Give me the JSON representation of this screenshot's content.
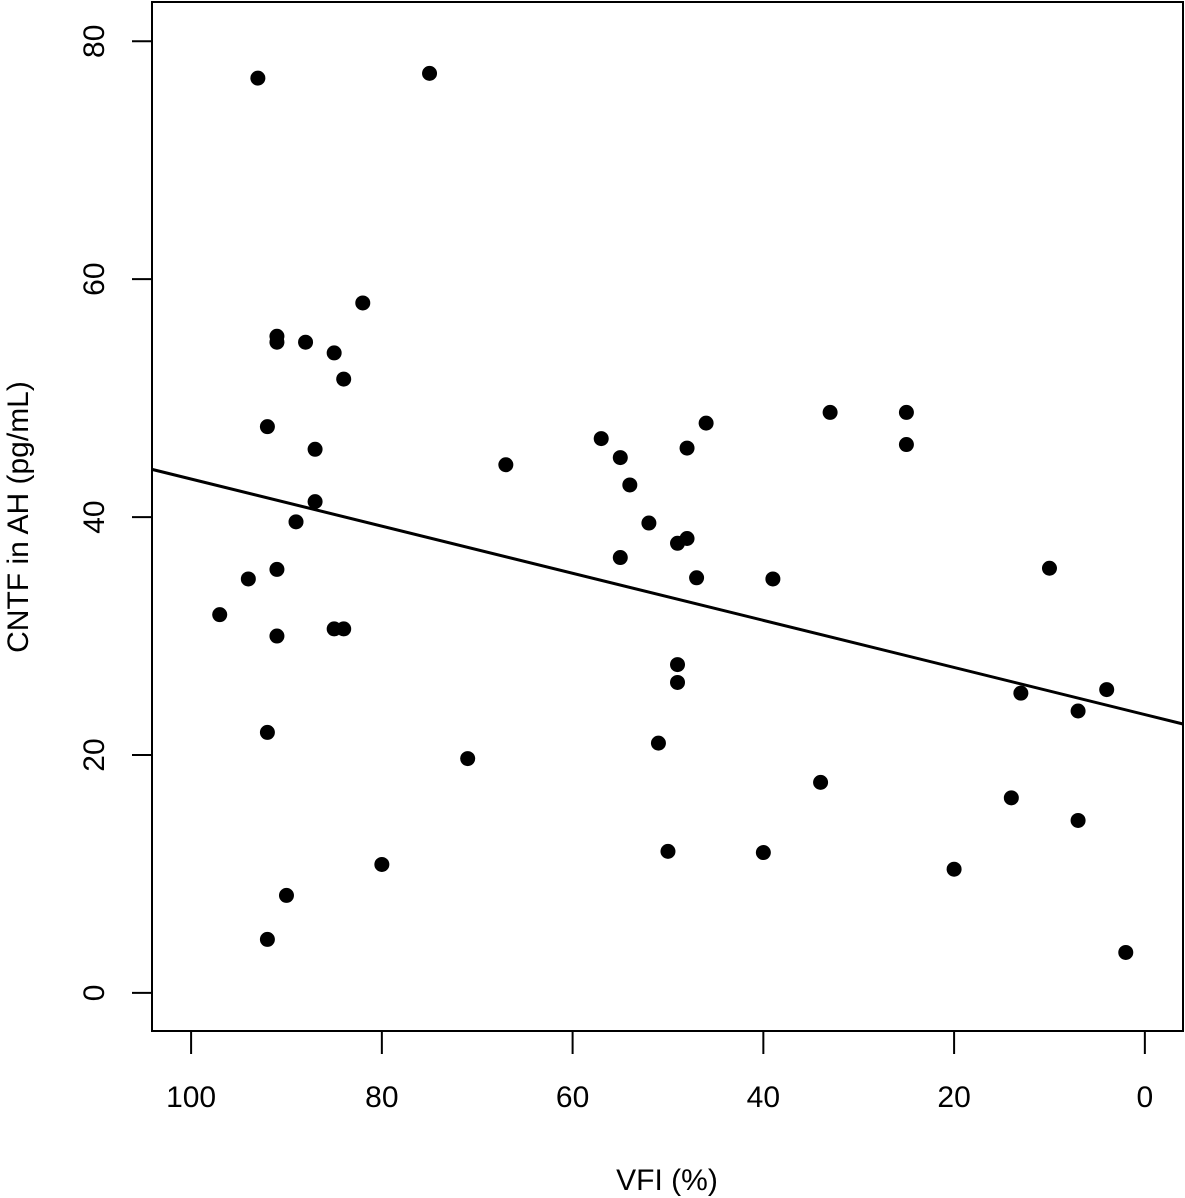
{
  "chart_data": {
    "type": "scatter",
    "title": "",
    "xlabel": "VFI (%)",
    "ylabel": "CNTF in AH (pg/mL)",
    "xlim": [
      104.1,
      -4.0
    ],
    "ylim": [
      -3.2,
      83.3
    ],
    "x_reversed": true,
    "grid": false,
    "x_ticks": [
      100,
      80,
      60,
      40,
      20,
      0
    ],
    "x_tick_labels": [
      "100",
      "80",
      "60",
      "40",
      "20",
      "0"
    ],
    "y_ticks": [
      0,
      20,
      40,
      60,
      80
    ],
    "y_tick_labels": [
      "0",
      "20",
      "40",
      "60",
      "80"
    ],
    "point_color": "#000000",
    "points": [
      {
        "x": 93,
        "y": 76.9
      },
      {
        "x": 75,
        "y": 77.3
      },
      {
        "x": 82,
        "y": 58.0
      },
      {
        "x": 91,
        "y": 55.2
      },
      {
        "x": 91,
        "y": 54.7
      },
      {
        "x": 88,
        "y": 54.7
      },
      {
        "x": 85,
        "y": 53.8
      },
      {
        "x": 84,
        "y": 51.6
      },
      {
        "x": 92,
        "y": 47.6
      },
      {
        "x": 87,
        "y": 45.7
      },
      {
        "x": 87,
        "y": 41.3
      },
      {
        "x": 89,
        "y": 39.6
      },
      {
        "x": 91,
        "y": 35.6
      },
      {
        "x": 94,
        "y": 34.8
      },
      {
        "x": 97,
        "y": 31.8
      },
      {
        "x": 91,
        "y": 30.0
      },
      {
        "x": 85,
        "y": 30.6
      },
      {
        "x": 84,
        "y": 30.6
      },
      {
        "x": 92,
        "y": 21.9
      },
      {
        "x": 71,
        "y": 19.7
      },
      {
        "x": 80,
        "y": 10.8
      },
      {
        "x": 90,
        "y": 8.2
      },
      {
        "x": 92,
        "y": 4.5
      },
      {
        "x": 67,
        "y": 44.4
      },
      {
        "x": 57,
        "y": 46.6
      },
      {
        "x": 55,
        "y": 45.0
      },
      {
        "x": 54,
        "y": 42.7
      },
      {
        "x": 52,
        "y": 39.5
      },
      {
        "x": 55,
        "y": 36.6
      },
      {
        "x": 49,
        "y": 37.8
      },
      {
        "x": 48,
        "y": 38.2
      },
      {
        "x": 48,
        "y": 45.8
      },
      {
        "x": 46,
        "y": 47.9
      },
      {
        "x": 47,
        "y": 34.9
      },
      {
        "x": 49,
        "y": 27.6
      },
      {
        "x": 49,
        "y": 26.1
      },
      {
        "x": 51,
        "y": 21.0
      },
      {
        "x": 50,
        "y": 11.9
      },
      {
        "x": 40,
        "y": 11.8
      },
      {
        "x": 39,
        "y": 34.8
      },
      {
        "x": 34,
        "y": 17.7
      },
      {
        "x": 33,
        "y": 48.8
      },
      {
        "x": 25,
        "y": 48.8
      },
      {
        "x": 25,
        "y": 46.1
      },
      {
        "x": 20,
        "y": 10.4
      },
      {
        "x": 14,
        "y": 16.4
      },
      {
        "x": 13,
        "y": 25.2
      },
      {
        "x": 10,
        "y": 35.7
      },
      {
        "x": 7,
        "y": 23.7
      },
      {
        "x": 7,
        "y": 14.5
      },
      {
        "x": 4,
        "y": 25.5
      },
      {
        "x": 2,
        "y": 3.4
      }
    ],
    "regression_line": {
      "intercept": 23.4,
      "slope": 0.198
    }
  }
}
